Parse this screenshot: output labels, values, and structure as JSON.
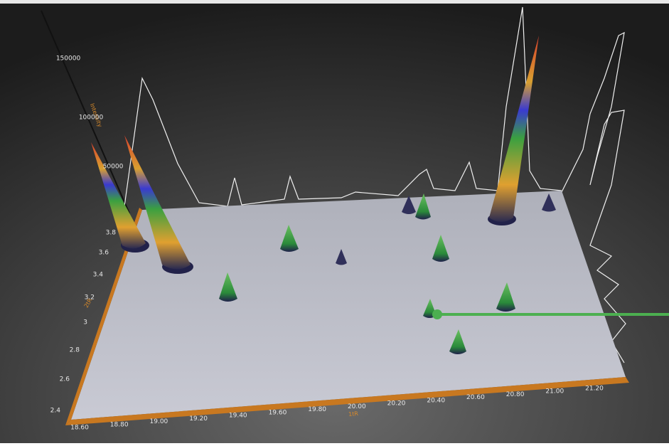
{
  "plot": {
    "intensity_axis": {
      "title": "Intensity",
      "ticks": [
        "150000",
        "100000",
        "50000"
      ]
    },
    "second_axis": {
      "title": "2tR",
      "ticks": [
        "2.4",
        "2.6",
        "2.8",
        "3",
        "3.2",
        "3.4",
        "3.6",
        "3.8"
      ]
    },
    "first_axis": {
      "title": "1tR",
      "ticks": [
        "18.60",
        "18.80",
        "19.00",
        "19.20",
        "19.40",
        "19.60",
        "19.80",
        "20.00",
        "20.20",
        "20.40",
        "20.60",
        "20.80",
        "21.00",
        "21.20"
      ]
    }
  }
}
